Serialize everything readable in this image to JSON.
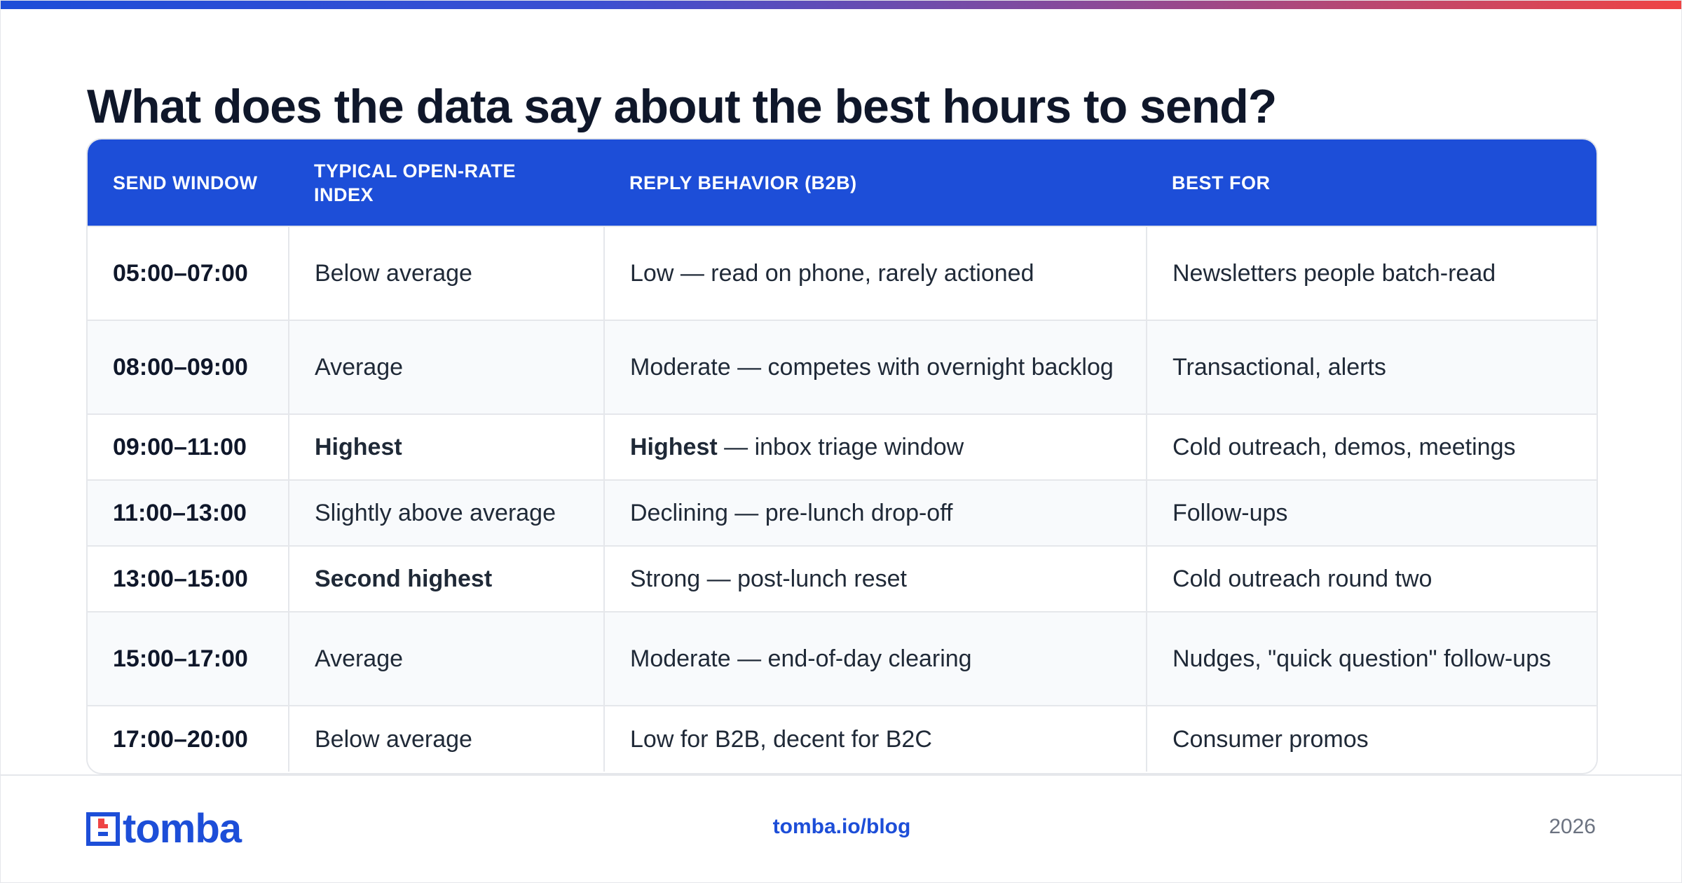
{
  "title": "What does the data say about the best hours to send?",
  "table": {
    "headers": [
      "SEND WINDOW",
      "TYPICAL OPEN-RATE INDEX",
      "REPLY BEHAVIOR (B2B)",
      "BEST FOR"
    ],
    "rows": [
      {
        "window": "05:00–07:00",
        "open_rate": "Below average",
        "reply_strong": "",
        "reply": "Low — read on phone, rarely actioned",
        "best_for": "Newsletters people batch-read"
      },
      {
        "window": "08:00–09:00",
        "open_rate": "Average",
        "reply_strong": "",
        "reply": "Moderate — competes with overnight backlog",
        "best_for": "Transactional, alerts"
      },
      {
        "window": "09:00–11:00",
        "open_rate": "Highest",
        "reply_strong": "Highest",
        "reply": " — inbox triage window",
        "best_for": "Cold outreach, demos, meetings"
      },
      {
        "window": "11:00–13:00",
        "open_rate": "Slightly above average",
        "reply_strong": "",
        "reply": "Declining — pre-lunch drop-off",
        "best_for": "Follow-ups"
      },
      {
        "window": "13:00–15:00",
        "open_rate": "Second highest",
        "reply_strong": "",
        "reply": "Strong — post-lunch reset",
        "best_for": "Cold outreach round two"
      },
      {
        "window": "15:00–17:00",
        "open_rate": "Average",
        "reply_strong": "",
        "reply": "Moderate — end-of-day clearing",
        "best_for": "Nudges, \"quick question\" follow-ups"
      },
      {
        "window": "17:00–20:00",
        "open_rate": "Below average",
        "reply_strong": "",
        "reply": "Low for B2B, decent for B2C",
        "best_for": "Consumer promos"
      }
    ]
  },
  "footer": {
    "brand": "tomba",
    "link": "tomba.io/blog",
    "year": "2026"
  },
  "colors": {
    "accent": "#1d4ed8",
    "logo_red": "#ef4444",
    "gradient_start": "#1d4ed8",
    "gradient_end": "#ef4444"
  }
}
